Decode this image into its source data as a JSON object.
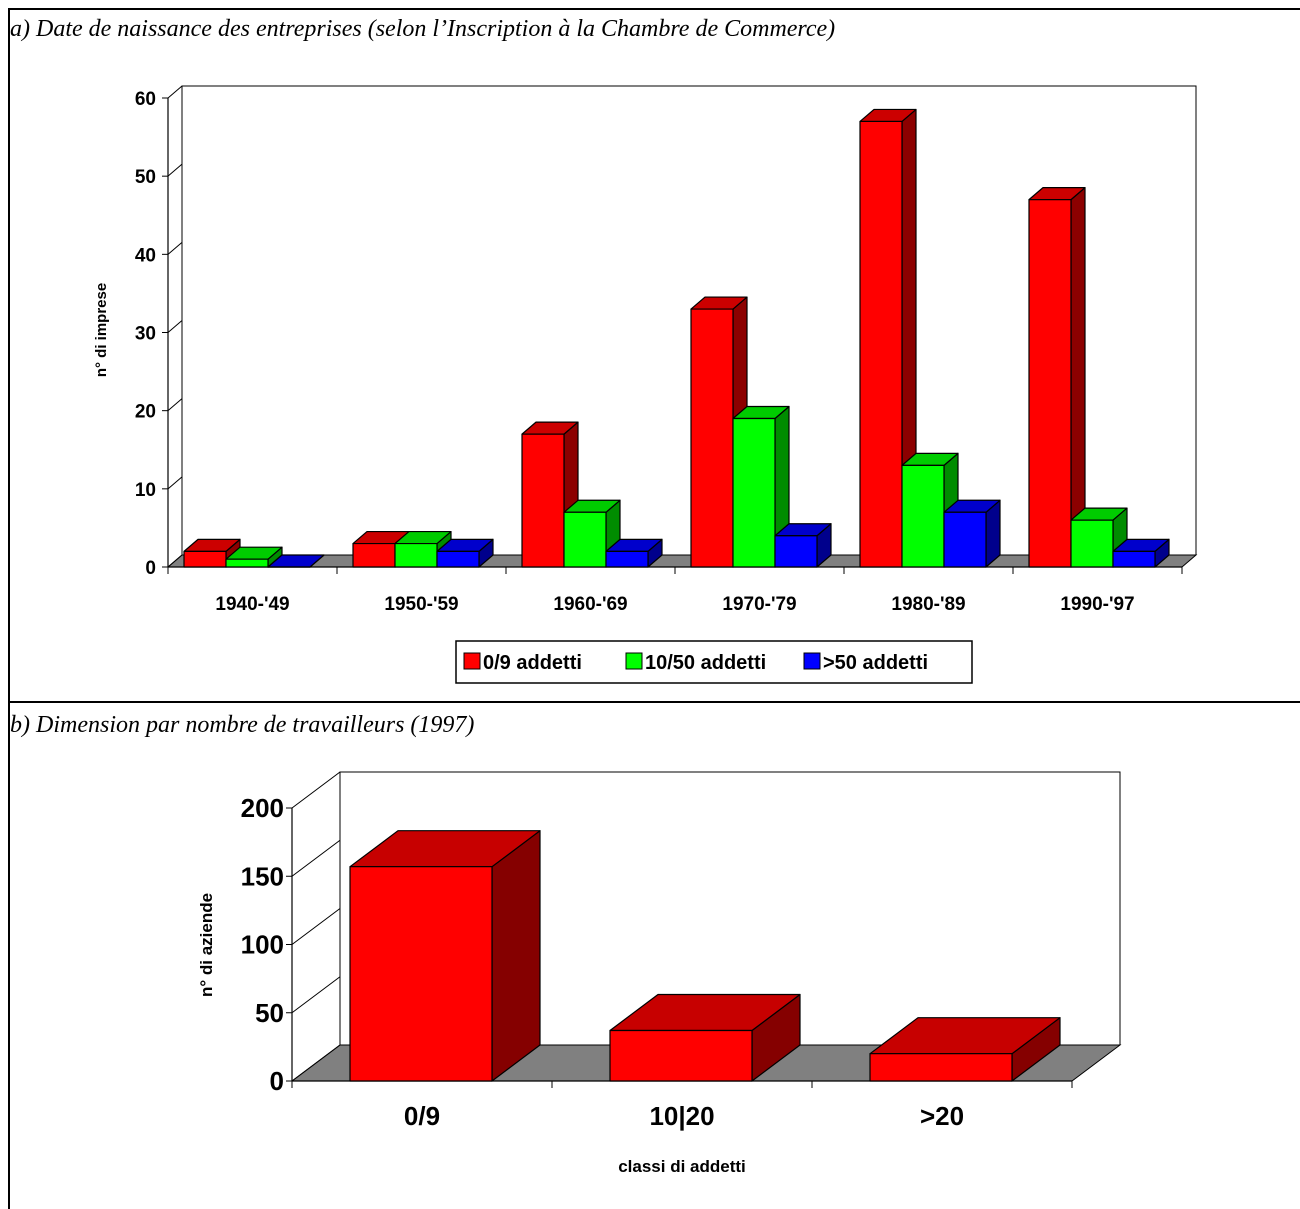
{
  "captions": {
    "a": "a) Date de naissance des entreprises (selon l’Inscription à la Chambre de Commerce)",
    "b": "b) Dimension par nombre de travailleurs (1997)"
  },
  "chart_data": [
    {
      "type": "bar",
      "title": "",
      "ylabel": "n° di imprese",
      "xlabel": "",
      "ylim": [
        0,
        60
      ],
      "yticks": [
        0,
        10,
        20,
        30,
        40,
        50,
        60
      ],
      "categories": [
        "1940-'49",
        "1950-'59",
        "1960-'69",
        "1970-'79",
        "1980-'89",
        "1990-'97"
      ],
      "series": [
        {
          "name": "0/9 addetti",
          "values": [
            2,
            3,
            17,
            33,
            57,
            47
          ],
          "color": "#ff0000"
        },
        {
          "name": "10/50 addetti",
          "values": [
            1,
            3,
            7,
            19,
            13,
            6
          ],
          "color": "#00ff00"
        },
        {
          "name": ">50 addetti",
          "values": [
            0,
            2,
            2,
            4,
            7,
            2
          ],
          "color": "#0000ff"
        }
      ],
      "legend": "bottom",
      "grid": false,
      "style": "3d"
    },
    {
      "type": "bar",
      "title": "",
      "ylabel": "n° di aziende",
      "xlabel": "classi di addetti",
      "ylim": [
        0,
        200
      ],
      "yticks": [
        0,
        50,
        100,
        150,
        200
      ],
      "categories": [
        "0/9",
        "10|20",
        ">20"
      ],
      "values": [
        157,
        37,
        20
      ],
      "color": "#ff0000",
      "grid": false,
      "style": "3d"
    }
  ]
}
